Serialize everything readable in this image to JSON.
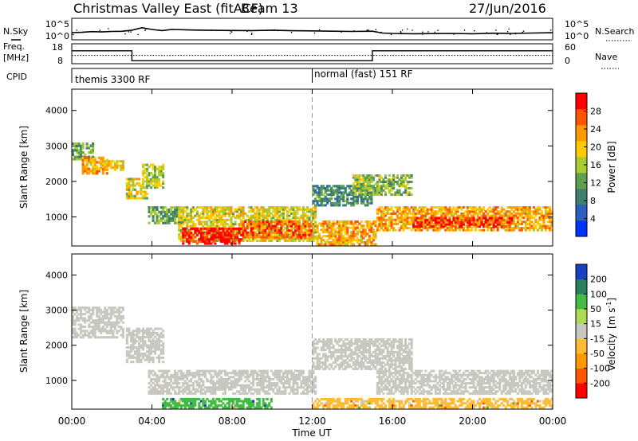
{
  "header": {
    "title": "Christmas Valley East (fitACF)",
    "beam": "Beam 13",
    "date": "27/Jun/2016"
  },
  "chart_data": [
    {
      "type": "line",
      "name": "noise_panel",
      "left_label": "N.Sky",
      "right_label": "N.Search",
      "left_ticks": [
        "10^5",
        "10^0"
      ],
      "right_ticks": [
        "10^5",
        "10^0"
      ],
      "x_hours": [
        0,
        0.5,
        1,
        1.5,
        2,
        2.5,
        3,
        3.5,
        4,
        4.5,
        5,
        6,
        7,
        8,
        9,
        10,
        11,
        12,
        13,
        14,
        15,
        15.5,
        16,
        17,
        18,
        19,
        20,
        21,
        22,
        23,
        24
      ],
      "noise_sky_log": [
        0.28,
        0.3,
        0.35,
        0.33,
        0.36,
        0.37,
        0.45,
        0.62,
        0.5,
        0.42,
        0.5,
        0.46,
        0.44,
        0.43,
        0.42,
        0.45,
        0.41,
        0.4,
        0.38,
        0.36,
        0.38,
        0.25,
        0.22,
        0.2,
        0.21,
        0.22,
        0.2,
        0.24,
        0.22,
        0.25,
        0.27
      ]
    },
    {
      "type": "line",
      "name": "frequency_panel",
      "left_label_1": "Freq.",
      "left_label_2": "[MHz]",
      "right_label": "Nave",
      "left_ticks": [
        "18",
        "8"
      ],
      "right_ticks": [
        "60",
        "0"
      ],
      "freq_steps": [
        {
          "from": 0,
          "to": 3.0,
          "value": 14.5
        },
        {
          "from": 3.0,
          "to": 15.0,
          "value": 9.5
        },
        {
          "from": 15.0,
          "to": 24,
          "value": 14.5
        }
      ],
      "nave_dotted_level": 25
    },
    {
      "type": "table",
      "name": "cpid_bar",
      "label": "CPID",
      "segments": [
        {
          "start_hour": 0,
          "label": "themis 3300 RF"
        },
        {
          "start_hour": 12,
          "label": "normal (fast) 151 RF"
        }
      ]
    },
    {
      "type": "heatmap",
      "name": "power_panel",
      "ylabel": "Slant Range [km]",
      "ylim": [
        180,
        4600
      ],
      "y_ticks": [
        "4000",
        "3000",
        "2000",
        "1000"
      ],
      "y_tick_values": [
        4000,
        3000,
        2000,
        1000
      ],
      "colorbar_label": "Power [dB]",
      "colorbar_ticks": [
        "28",
        "24",
        "20",
        "16",
        "12",
        "8",
        "4"
      ],
      "colorbar_values": [
        28,
        24,
        20,
        16,
        12,
        8,
        4
      ],
      "colorbar_range": [
        0,
        32
      ],
      "colors": [
        "#0033ff",
        "#2a5fbf",
        "#3f7f6f",
        "#5f9f4f",
        "#aacc33",
        "#ffcc00",
        "#ff9900",
        "#ff5500",
        "#ff0000"
      ],
      "echo_bands": [
        {
          "h0": 0.0,
          "h1": 1.1,
          "r0": 2600,
          "r1": 3100,
          "p": 12
        },
        {
          "h0": 0.5,
          "h1": 1.8,
          "r0": 2200,
          "r1": 2700,
          "p": 22
        },
        {
          "h0": 1.4,
          "h1": 2.6,
          "r0": 2300,
          "r1": 2600,
          "p": 20
        },
        {
          "h0": 2.7,
          "h1": 3.8,
          "r0": 1500,
          "r1": 2100,
          "p": 18
        },
        {
          "h0": 3.5,
          "h1": 4.6,
          "r0": 1800,
          "r1": 2500,
          "p": 16
        },
        {
          "h0": 3.8,
          "h1": 5.5,
          "r0": 800,
          "r1": 1300,
          "p": 12
        },
        {
          "h0": 5.3,
          "h1": 12.2,
          "r0": 300,
          "r1": 1300,
          "p": 18
        },
        {
          "h0": 5.5,
          "h1": 8.5,
          "r0": 220,
          "r1": 700,
          "p": 30
        },
        {
          "h0": 8.5,
          "h1": 12.0,
          "r0": 400,
          "r1": 900,
          "p": 26
        },
        {
          "h0": 12.2,
          "h1": 15.2,
          "r0": 200,
          "r1": 900,
          "p": 22
        },
        {
          "h0": 12.0,
          "h1": 15.0,
          "r0": 1300,
          "r1": 1900,
          "p": 10
        },
        {
          "h0": 14.0,
          "h1": 17.0,
          "r0": 1600,
          "r1": 2200,
          "p": 14
        },
        {
          "h0": 15.2,
          "h1": 24.0,
          "r0": 600,
          "r1": 1300,
          "p": 22
        },
        {
          "h0": 17.0,
          "h1": 22.0,
          "r0": 700,
          "r1": 1000,
          "p": 28
        }
      ]
    },
    {
      "type": "heatmap",
      "name": "velocity_panel",
      "ylabel": "Slant Range [km]",
      "ylim": [
        180,
        4600
      ],
      "y_ticks": [
        "4000",
        "3000",
        "2000",
        "1000"
      ],
      "y_tick_values": [
        4000,
        3000,
        2000,
        1000
      ],
      "colorbar_label_main": "Velocity",
      "colorbar_label_unit": "[m s",
      "colorbar_label_sup": "-1",
      "colorbar_label_close": "]",
      "colorbar_ticks": [
        "200",
        "100",
        "50",
        "15",
        "-15",
        "-50",
        "-100",
        "-200"
      ],
      "colorbar_values": [
        200,
        100,
        50,
        15,
        -15,
        -50,
        -100,
        -200
      ],
      "colorbar_colors": [
        "#ff0000",
        "#ff5500",
        "#ff9900",
        "#ffbb33",
        "#c8c8c0",
        "#aadd55",
        "#44bb44",
        "#2a7f5f",
        "#1a3fbf"
      ],
      "echo_bands": [
        {
          "h0": 0.0,
          "h1": 2.6,
          "r0": 2200,
          "r1": 3100,
          "v": "ground"
        },
        {
          "h0": 2.7,
          "h1": 4.6,
          "r0": 1500,
          "r1": 2500,
          "v": "ground"
        },
        {
          "h0": 3.8,
          "h1": 12.2,
          "r0": 600,
          "r1": 1300,
          "v": "ground"
        },
        {
          "h0": 4.5,
          "h1": 10.0,
          "r0": 200,
          "r1": 500,
          "v": 30
        },
        {
          "h0": 12.0,
          "h1": 24.0,
          "r0": 200,
          "r1": 500,
          "v": -30
        },
        {
          "h0": 12.0,
          "h1": 17.0,
          "r0": 1300,
          "r1": 2200,
          "v": "ground"
        },
        {
          "h0": 15.2,
          "h1": 24.0,
          "r0": 600,
          "r1": 1300,
          "v": "ground"
        }
      ]
    }
  ],
  "x_axis": {
    "label": "Time UT",
    "ticks": [
      "00:00",
      "04:00",
      "08:00",
      "12:00",
      "16:00",
      "20:00",
      "00:00"
    ],
    "tick_hours": [
      0,
      4,
      8,
      12,
      16,
      20,
      24
    ],
    "range": [
      0,
      24
    ]
  }
}
